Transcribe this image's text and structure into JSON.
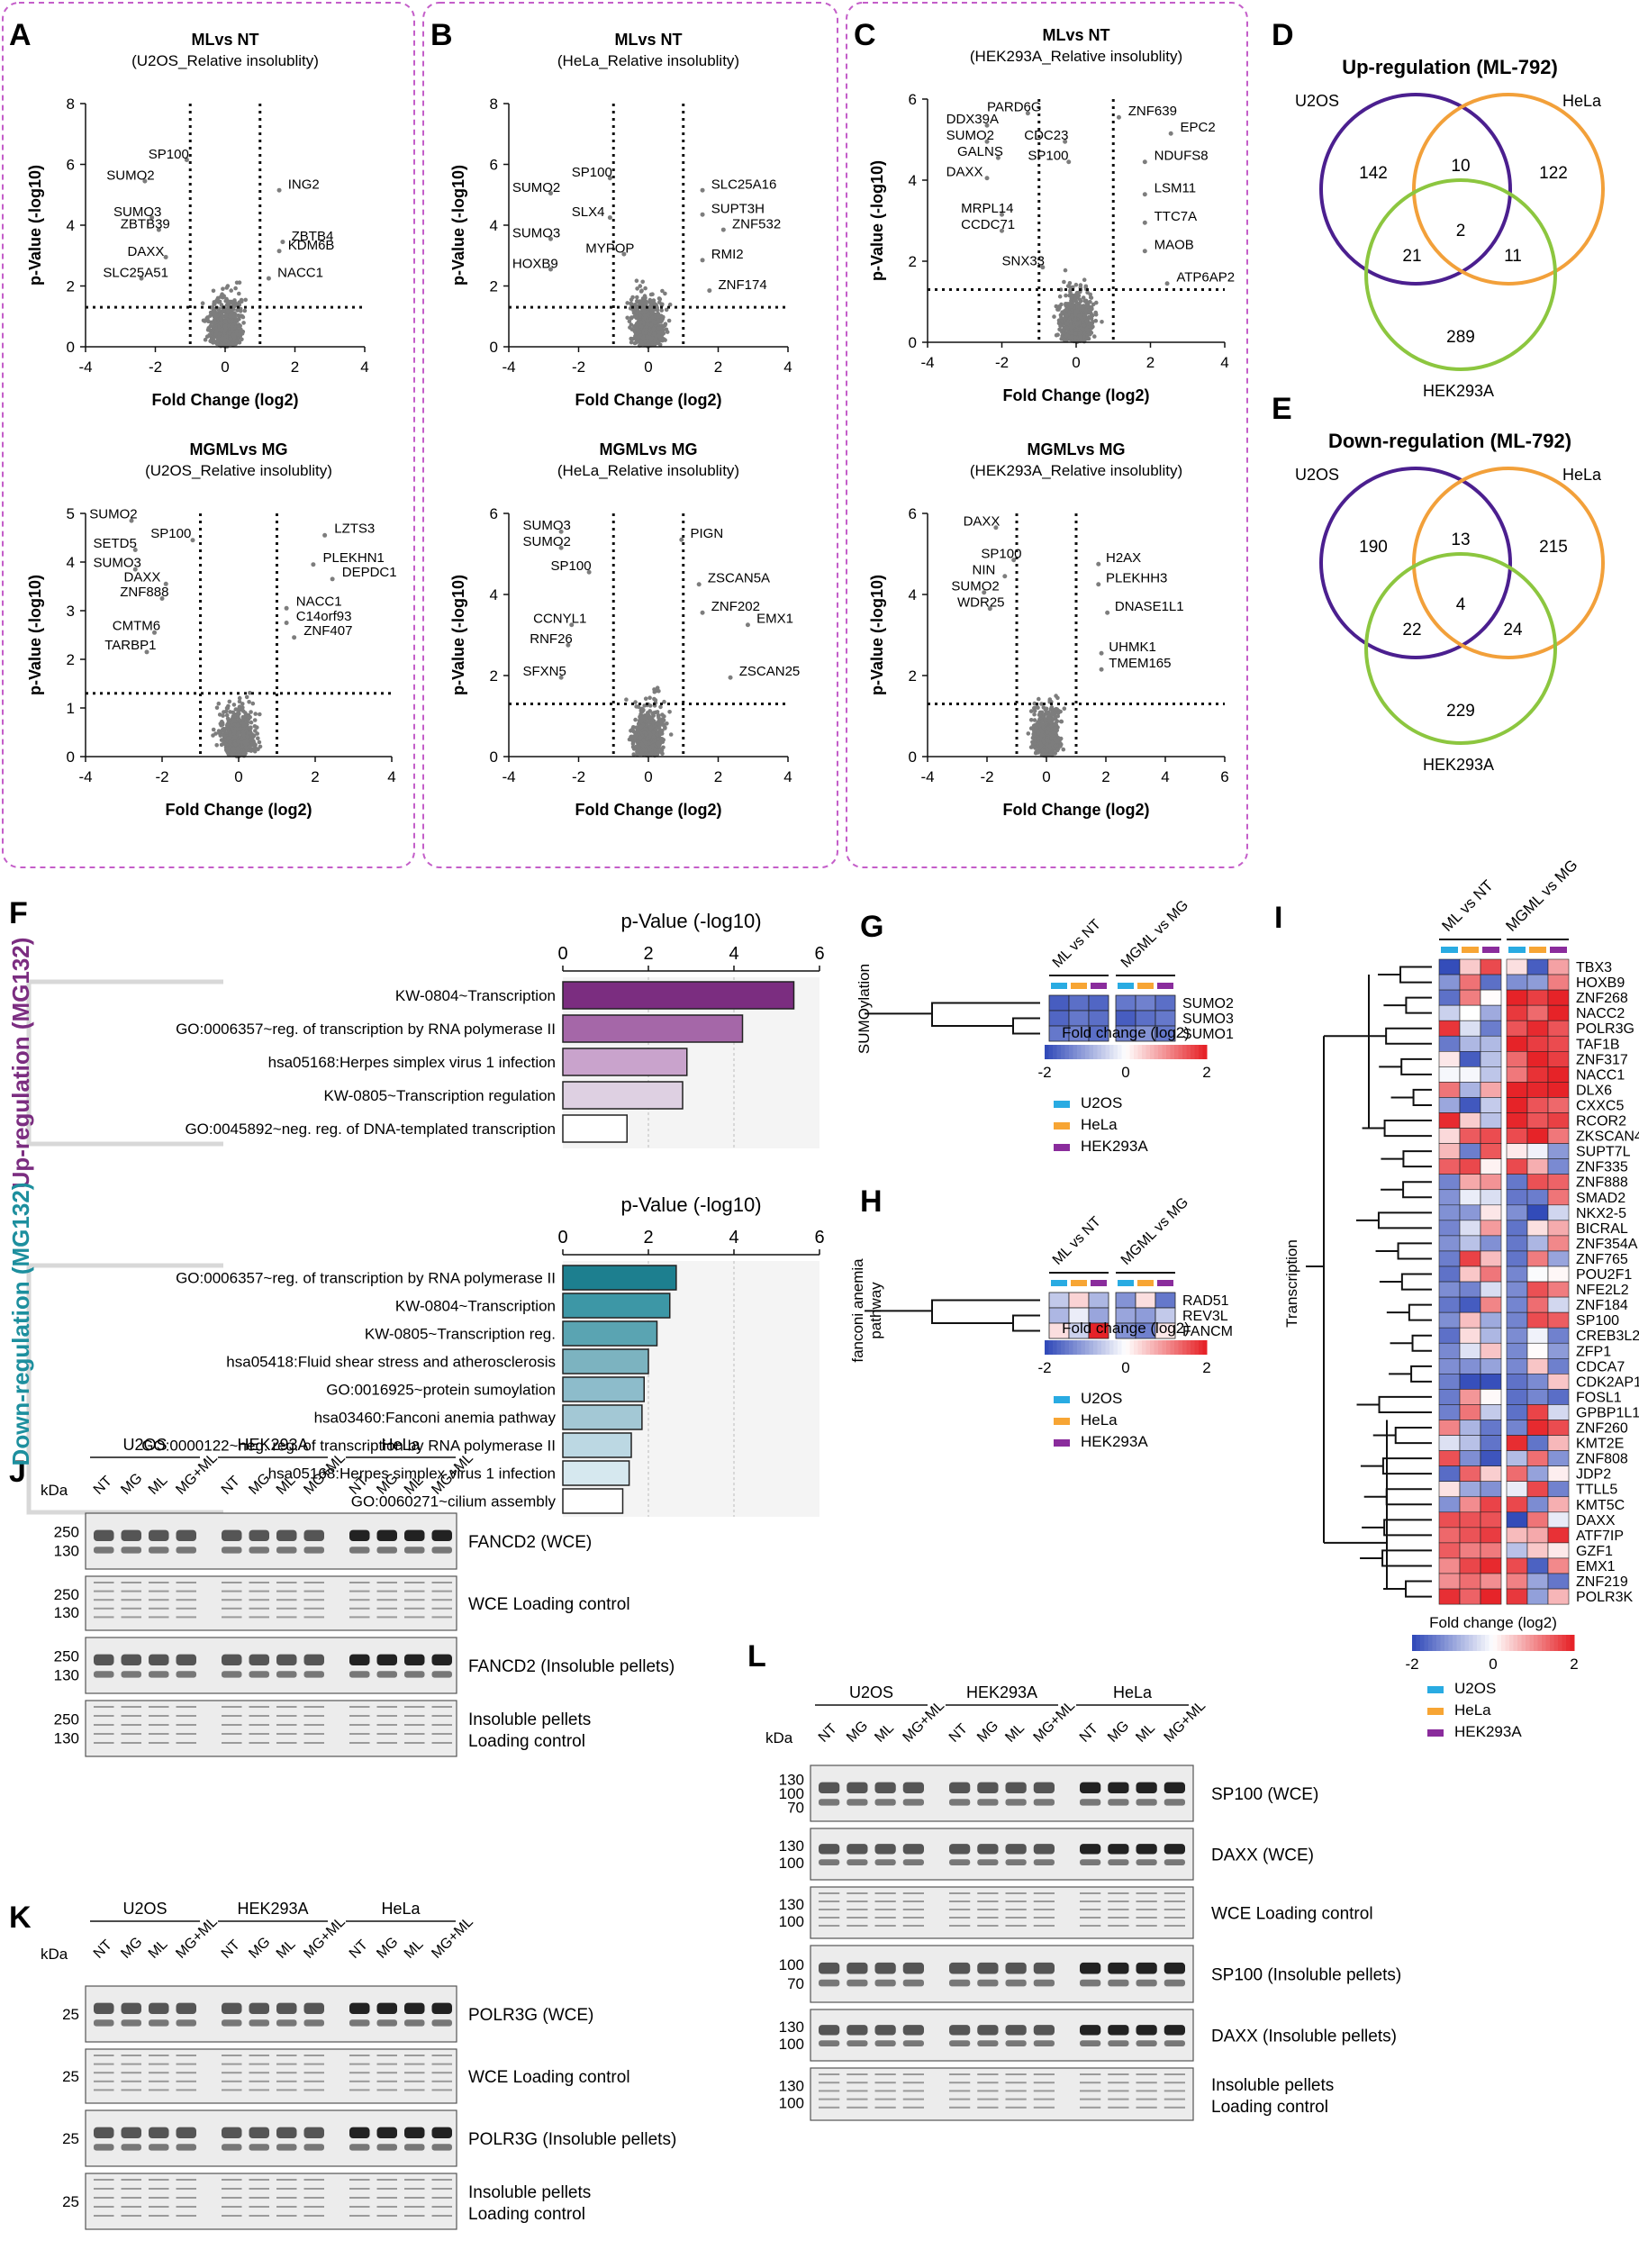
{
  "letters": {
    "A": "A",
    "B": "B",
    "C": "C",
    "D": "D",
    "E": "E",
    "F": "F",
    "G": "G",
    "H": "H",
    "I": "I",
    "J": "J",
    "K": "K",
    "L": "L"
  },
  "volcano": {
    "xlabel": "Fold Change (log2)",
    "ylabel": "p-Value (-log10)",
    "plots": [
      {
        "title": "MLvs NT",
        "subtitle": "(U2OS_Relative insolublity)",
        "xticks": [
          "-4",
          "-2",
          "0",
          "2",
          "4"
        ],
        "yticks": [
          "0",
          "2",
          "4",
          "6",
          "8"
        ],
        "labels": [
          "SP100",
          "SUMO2",
          "SUMO3",
          "ZBTB39",
          "DAXX",
          "SLC25A51",
          "ING2",
          "ZBTB4",
          "KDM6B",
          "NACC1"
        ]
      },
      {
        "title": "MLvs NT",
        "subtitle": "(HeLa_Relative insolublity)",
        "xticks": [
          "-4",
          "-2",
          "0",
          "2",
          "4"
        ],
        "yticks": [
          "0",
          "2",
          "4",
          "6",
          "8"
        ],
        "labels": [
          "SP100",
          "SUMO2",
          "SLX4",
          "SUMO3",
          "MYPOP",
          "HOXB9",
          "SLC25A16",
          "SUPT3H",
          "ZNF532",
          "RMI2",
          "ZNF174"
        ]
      },
      {
        "title": "MLvs NT",
        "subtitle": "(HEK293A_Relative insolublity)",
        "xticks": [
          "-4",
          "-2",
          "0",
          "2",
          "4"
        ],
        "yticks": [
          "0",
          "2",
          "4",
          "6"
        ],
        "labels": [
          "PARD6G",
          "DDX39A",
          "SUMO2",
          "CDC23",
          "GALNS",
          "SP100",
          "DAXX",
          "MRPL14",
          "CCDC71",
          "SNX33",
          "ZNF639",
          "EPC2",
          "NDUFS8",
          "LSM11",
          "TTC7A",
          "MAOB",
          "ATP6AP2"
        ]
      },
      {
        "title": "MGMLvs MG",
        "subtitle": "(U2OS_Relative insolublity)",
        "xticks": [
          "-4",
          "-2",
          "0",
          "2",
          "4"
        ],
        "yticks": [
          "0",
          "1",
          "2",
          "3",
          "4",
          "5"
        ],
        "labels": [
          "SUMO2",
          "SP100",
          "SETD5",
          "SUMO3",
          "DAXX",
          "ZNF888",
          "CMTM6",
          "TARBP1",
          "LZTS3",
          "PLEKHN1",
          "DEPDC1",
          "NACC1",
          "C14orf93",
          "ZNF407"
        ]
      },
      {
        "title": "MGMLvs MG",
        "subtitle": "(HeLa_Relative insolublity)",
        "xticks": [
          "-4",
          "-2",
          "0",
          "2",
          "4"
        ],
        "yticks": [
          "0",
          "2",
          "4",
          "6"
        ],
        "labels": [
          "SUMO3",
          "SUMO2",
          "SP100",
          "CCNYL1",
          "RNF26",
          "SFXN5",
          "PIGN",
          "ZSCAN5A",
          "ZNF202",
          "EMX1",
          "ZSCAN25"
        ]
      },
      {
        "title": "MGMLvs MG",
        "subtitle": "(HEK293A_Relative insolublity)",
        "xticks": [
          "-4",
          "-2",
          "0",
          "2",
          "4",
          "6"
        ],
        "yticks": [
          "0",
          "2",
          "4",
          "6"
        ],
        "labels": [
          "DAXX",
          "SP100",
          "NIN",
          "SUMO2",
          "WDR25",
          "H2AX",
          "PLEKHH3",
          "DNASE1L1",
          "UHMK1",
          "TMEM165"
        ]
      }
    ]
  },
  "venn": {
    "up_title": "Up-regulation (ML-792)",
    "down_title": "Down-regulation (ML-792)",
    "set_u2os": "U2OS",
    "set_hela": "HeLa",
    "set_hek": "HEK293A",
    "up": {
      "u2os_only": "142",
      "u2os_hela": "10",
      "hela_only": "122",
      "all": "2",
      "u2os_hek": "21",
      "hela_hek": "11",
      "hek_only": "289"
    },
    "down": {
      "u2os_only": "190",
      "u2os_hela": "13",
      "hela_only": "215",
      "all": "4",
      "u2os_hek": "22",
      "hela_hek": "24",
      "hek_only": "229"
    },
    "colors": {
      "u2os": "#4b1f8f",
      "hela": "#f2a03a",
      "hek": "#8cc63f"
    }
  },
  "go": {
    "axis_title": "p-Value (-log10)",
    "ticks": [
      "0",
      "2",
      "4",
      "6"
    ],
    "up_label": "Up-regulation (MG132)",
    "down_label": "Down-regulation (MG132)",
    "chart_data": [
      {
        "type": "bar",
        "title": "p-Value (-log10)",
        "orientation": "horizontal",
        "xlim": [
          0,
          6
        ],
        "categories": [
          "KW-0804~Transcription",
          "GO:0006357~reg. of transcription by RNA polymerase II",
          "hsa05168:Herpes simplex virus 1 infection",
          "KW-0805~Transcription regulation",
          "GO:0045892~neg. reg. of DNA-templated transcription"
        ],
        "values": [
          5.4,
          4.2,
          2.9,
          2.8,
          1.5
        ]
      },
      {
        "type": "bar",
        "title": "p-Value (-log10)",
        "orientation": "horizontal",
        "xlim": [
          0,
          6
        ],
        "categories": [
          "GO:0006357~reg. of transcription by RNA polymerase II",
          "KW-0804~Transcription",
          "KW-0805~Transcription reg.",
          "hsa05418:Fluid shear stress and atherosclerosis",
          "GO:0016925~protein sumoylation",
          "hsa03460:Fanconi anemia pathway",
          "GO:0000122~neg. reg. of transcription by RNA polymerase II",
          "hsa05168:Herpes simplex virus 1 infection",
          "GO:0060271~cilium assembly"
        ],
        "values": [
          2.65,
          2.5,
          2.2,
          2.0,
          1.9,
          1.85,
          1.6,
          1.55,
          1.4
        ]
      }
    ]
  },
  "heat_small": {
    "col_ml": "ML vs NT",
    "col_mgml": "MGML vs MG",
    "scale_title": "Fold change (log2)",
    "scale_ticks": [
      "-2",
      "0",
      "2"
    ],
    "legend": [
      "U2OS",
      "HeLa",
      "HEK293A"
    ],
    "legend_colors": [
      "#29abe2",
      "#f7a534",
      "#8a2c9c"
    ],
    "g_group": "SUMOylation",
    "g_rows": [
      "SUMO2",
      "SUMO3",
      "SUMO1"
    ],
    "h_group_line1": "fanconi anemia",
    "h_group_line2": "pathway",
    "h_rows": [
      "RAD51",
      "REV3L",
      "FANCM"
    ]
  },
  "heat_big": {
    "col_ml": "ML vs NT",
    "col_mgml": "MGML vs MG",
    "group": "Transcription",
    "scale_title": "Fold change (log2)",
    "scale_ticks": [
      "-2",
      "0",
      "2"
    ],
    "legend": [
      "U2OS",
      "HeLa",
      "HEK293A"
    ],
    "rows": [
      "TBX3",
      "HOXB9",
      "ZNF268",
      "NACC2",
      "POLR3G",
      "TAF1B",
      "ZNF317",
      "NACC1",
      "DLX6",
      "CXXC5",
      "RCOR2",
      "ZKSCAN4",
      "SUPT7L",
      "ZNF335",
      "ZNF888",
      "SMAD2",
      "NKX2-5",
      "BICRAL",
      "ZNF354A",
      "ZNF765",
      "POU2F1",
      "NFE2L2",
      "ZNF184",
      "SP100",
      "CREB3L2",
      "ZFP1",
      "CDCA7",
      "CDK2AP1",
      "FOSL1",
      "GPBP1L1",
      "ZNF260",
      "KMT2E",
      "ZNF808",
      "JDP2",
      "TTLL5",
      "KMT5C",
      "DAXX",
      "ATF7IP",
      "GZF1",
      "EMX1",
      "ZNF219",
      "POLR3K"
    ]
  },
  "blots": {
    "kda": "kDa",
    "cells": [
      "U2OS",
      "HEK293A",
      "HeLa"
    ],
    "cells_L": [
      "U2OS",
      "HEK293A",
      "HeLa"
    ],
    "lanes": [
      "NT",
      "MG",
      "ML",
      "MG+ML"
    ],
    "J": {
      "rows": [
        {
          "label": "FANCD2 (WCE)",
          "mw": [
            "250",
            "130"
          ]
        },
        {
          "label": "WCE Loading control",
          "mw": [
            "250",
            "130"
          ]
        },
        {
          "label": "FANCD2 (Insoluble pellets)",
          "mw": [
            "250",
            "130"
          ]
        },
        {
          "label1": "Insoluble pellets",
          "label2": "Loading control",
          "mw": [
            "250",
            "130"
          ]
        }
      ]
    },
    "K": {
      "rows": [
        {
          "label": "POLR3G (WCE)",
          "mw": [
            "25"
          ]
        },
        {
          "label": "WCE Loading control",
          "mw": [
            "25"
          ]
        },
        {
          "label": "POLR3G (Insoluble pellets)",
          "mw": [
            "25"
          ]
        },
        {
          "label1": "Insoluble pellets",
          "label2": "Loading control",
          "mw": [
            "25"
          ]
        }
      ]
    },
    "L": {
      "rows": [
        {
          "label": "SP100 (WCE)",
          "mw": [
            "130",
            "100",
            "70"
          ]
        },
        {
          "label": "DAXX (WCE)",
          "mw": [
            "130",
            "100"
          ]
        },
        {
          "label": "WCE Loading control",
          "mw": [
            "130",
            "100"
          ]
        },
        {
          "label": "SP100 (Insoluble pellets)",
          "mw": [
            "100",
            "70"
          ]
        },
        {
          "label": "DAXX (Insoluble pellets)",
          "mw": [
            "130",
            "100"
          ]
        },
        {
          "label1": "Insoluble pellets",
          "label2": "Loading control",
          "mw": [
            "130",
            "100"
          ]
        }
      ]
    }
  }
}
